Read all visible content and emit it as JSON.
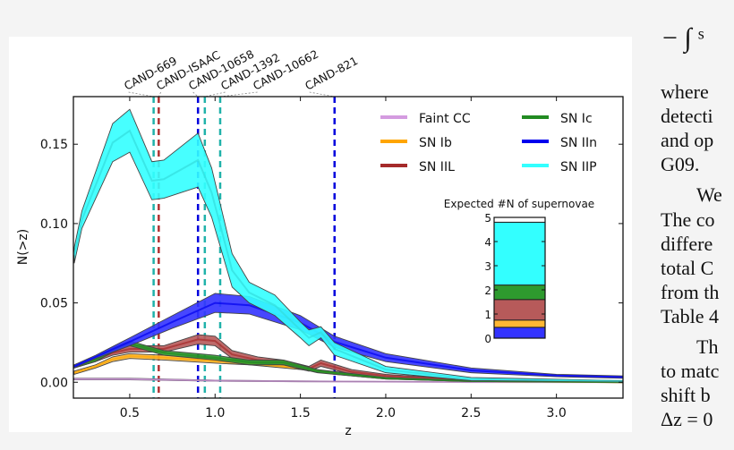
{
  "chart_data": {
    "type": "area",
    "xlabel": "z",
    "ylabel": "N(>z)",
    "xlim": [
      0.17,
      3.39
    ],
    "ylim": [
      -0.01,
      0.18
    ],
    "xticks": [
      "0.5",
      "1.0",
      "1.5",
      "2.0",
      "2.5",
      "3.0"
    ],
    "xtick_values": [
      0.5,
      1.0,
      1.5,
      2.0,
      2.5,
      3.0
    ],
    "yticks": [
      "0.00",
      "0.05",
      "0.10",
      "0.15"
    ],
    "ytick_values": [
      0,
      0.05,
      0.1,
      0.15
    ],
    "grid": false,
    "legend_placement": "top-right",
    "series": [
      {
        "name": "Faint CC",
        "color": "#d49be0",
        "band": "#d49be0",
        "x": [
          0.175,
          0.5,
          1.0,
          1.5,
          2.0,
          2.5,
          3.39
        ],
        "lower": [
          0.0015,
          0.0015,
          0.0007,
          0.0003,
          0.0002,
          0.0,
          0.0
        ],
        "upper": [
          0.0025,
          0.0025,
          0.0013,
          0.0008,
          0.0005,
          0.0002,
          0.0
        ]
      },
      {
        "name": "SN Ib",
        "color": "#ffa500",
        "band": "#ffb733",
        "x": [
          0.175,
          0.3,
          0.4,
          0.5,
          0.7,
          1.0,
          1.2,
          1.5,
          1.7,
          2.0,
          2.5,
          3.39
        ],
        "lower": [
          0.005,
          0.009,
          0.013,
          0.015,
          0.014,
          0.012,
          0.011,
          0.008,
          0.005,
          0.002,
          0.0005,
          0.0
        ],
        "upper": [
          0.007,
          0.011,
          0.016,
          0.018,
          0.017,
          0.015,
          0.013,
          0.01,
          0.006,
          0.003,
          0.001,
          0.0
        ]
      },
      {
        "name": "SN IIL",
        "color": "#a52a2a",
        "band": "#b75a5a",
        "x": [
          0.175,
          0.3,
          0.4,
          0.5,
          0.7,
          0.9,
          1.0,
          1.1,
          1.25,
          1.4,
          1.55,
          1.62,
          1.8,
          2.0,
          2.5,
          3.39
        ],
        "lower": [
          0.009,
          0.013,
          0.017,
          0.019,
          0.019,
          0.024,
          0.023,
          0.015,
          0.012,
          0.011,
          0.007,
          0.01,
          0.005,
          0.003,
          0.0007,
          0.0
        ],
        "upper": [
          0.011,
          0.016,
          0.02,
          0.023,
          0.023,
          0.03,
          0.029,
          0.02,
          0.016,
          0.014,
          0.01,
          0.014,
          0.008,
          0.005,
          0.0015,
          0.0
        ]
      },
      {
        "name": "SN Ic",
        "color": "#228b22",
        "band": "#2e9a2e",
        "x": [
          0.175,
          0.3,
          0.4,
          0.5,
          0.7,
          1.0,
          1.2,
          1.4,
          1.6,
          2.0,
          2.5,
          3.39
        ],
        "lower": [
          0.009,
          0.013,
          0.019,
          0.023,
          0.017,
          0.014,
          0.011,
          0.011,
          0.006,
          0.002,
          0.0005,
          0.0
        ],
        "upper": [
          0.011,
          0.016,
          0.022,
          0.026,
          0.02,
          0.017,
          0.014,
          0.014,
          0.008,
          0.003,
          0.001,
          0.0
        ]
      },
      {
        "name": "SN IIn",
        "color": "#0000ee",
        "band": "#3333ff",
        "x": [
          0.175,
          0.3,
          0.5,
          0.75,
          1.0,
          1.2,
          1.5,
          1.7,
          2.0,
          2.5,
          3.0,
          3.39
        ],
        "lower": [
          0.009,
          0.015,
          0.023,
          0.034,
          0.044,
          0.043,
          0.033,
          0.022,
          0.013,
          0.006,
          0.0035,
          0.0025
        ],
        "upper": [
          0.011,
          0.017,
          0.028,
          0.042,
          0.056,
          0.054,
          0.042,
          0.029,
          0.018,
          0.009,
          0.005,
          0.004
        ]
      },
      {
        "name": "SN IIP",
        "color": "#33dddd",
        "band": "#33ffff",
        "x": [
          0.175,
          0.22,
          0.4,
          0.5,
          0.63,
          0.7,
          0.9,
          0.98,
          1.1,
          1.2,
          1.35,
          1.5,
          1.55,
          1.62,
          1.7,
          2.0,
          2.5,
          3.39
        ],
        "lower": [
          0.075,
          0.097,
          0.139,
          0.145,
          0.115,
          0.116,
          0.123,
          0.104,
          0.06,
          0.05,
          0.042,
          0.028,
          0.023,
          0.028,
          0.017,
          0.006,
          0.001,
          0.0005
        ],
        "upper": [
          0.085,
          0.108,
          0.163,
          0.172,
          0.139,
          0.14,
          0.157,
          0.135,
          0.081,
          0.063,
          0.055,
          0.038,
          0.033,
          0.035,
          0.025,
          0.01,
          0.003,
          0.001
        ]
      }
    ],
    "candidates": [
      {
        "label": "CAND-669",
        "z": 0.64,
        "color": "#20b2aa"
      },
      {
        "label": "CAND-ISAAC",
        "z": 0.67,
        "color": "#b03030"
      },
      {
        "label": "CAND-10658",
        "z": 0.9,
        "color": "#0000dd"
      },
      {
        "label": "CAND-1392",
        "z": 0.94,
        "color": "#20b2aa"
      },
      {
        "label": "CAND-10662",
        "z": 1.03,
        "color": "#20b2aa"
      },
      {
        "label": "CAND-821",
        "z": 1.7,
        "color": "#0000dd"
      }
    ],
    "inset": {
      "type": "bar",
      "title": "Expected #N of supernovae",
      "ylim": [
        0,
        5
      ],
      "yticks": [
        "0",
        "1",
        "2",
        "3",
        "4",
        "5"
      ],
      "stack": [
        {
          "name": "SN IIn",
          "value": 0.45,
          "color": "#3333ff"
        },
        {
          "name": "SN Ib",
          "value": 0.3,
          "color": "#ffb733"
        },
        {
          "name": "SN IIL",
          "value": 0.85,
          "color": "#b75a5a"
        },
        {
          "name": "SN Ic",
          "value": 0.6,
          "color": "#2e9a2e"
        },
        {
          "name": "SN IIP",
          "value": 2.6,
          "color": "#33ffff"
        },
        {
          "name": "Faint CC",
          "value": 0.2,
          "color": "#ffffff"
        }
      ]
    }
  },
  "side_text": {
    "equation": "− ∫ ˢ",
    "lines": [
      "where",
      "detecti",
      "and op",
      "G09.",
      "We",
      "The co",
      "differe",
      "total C",
      "from th",
      "Table 4",
      "Th",
      "to matc",
      "shift b",
      "Δz = 0"
    ]
  }
}
